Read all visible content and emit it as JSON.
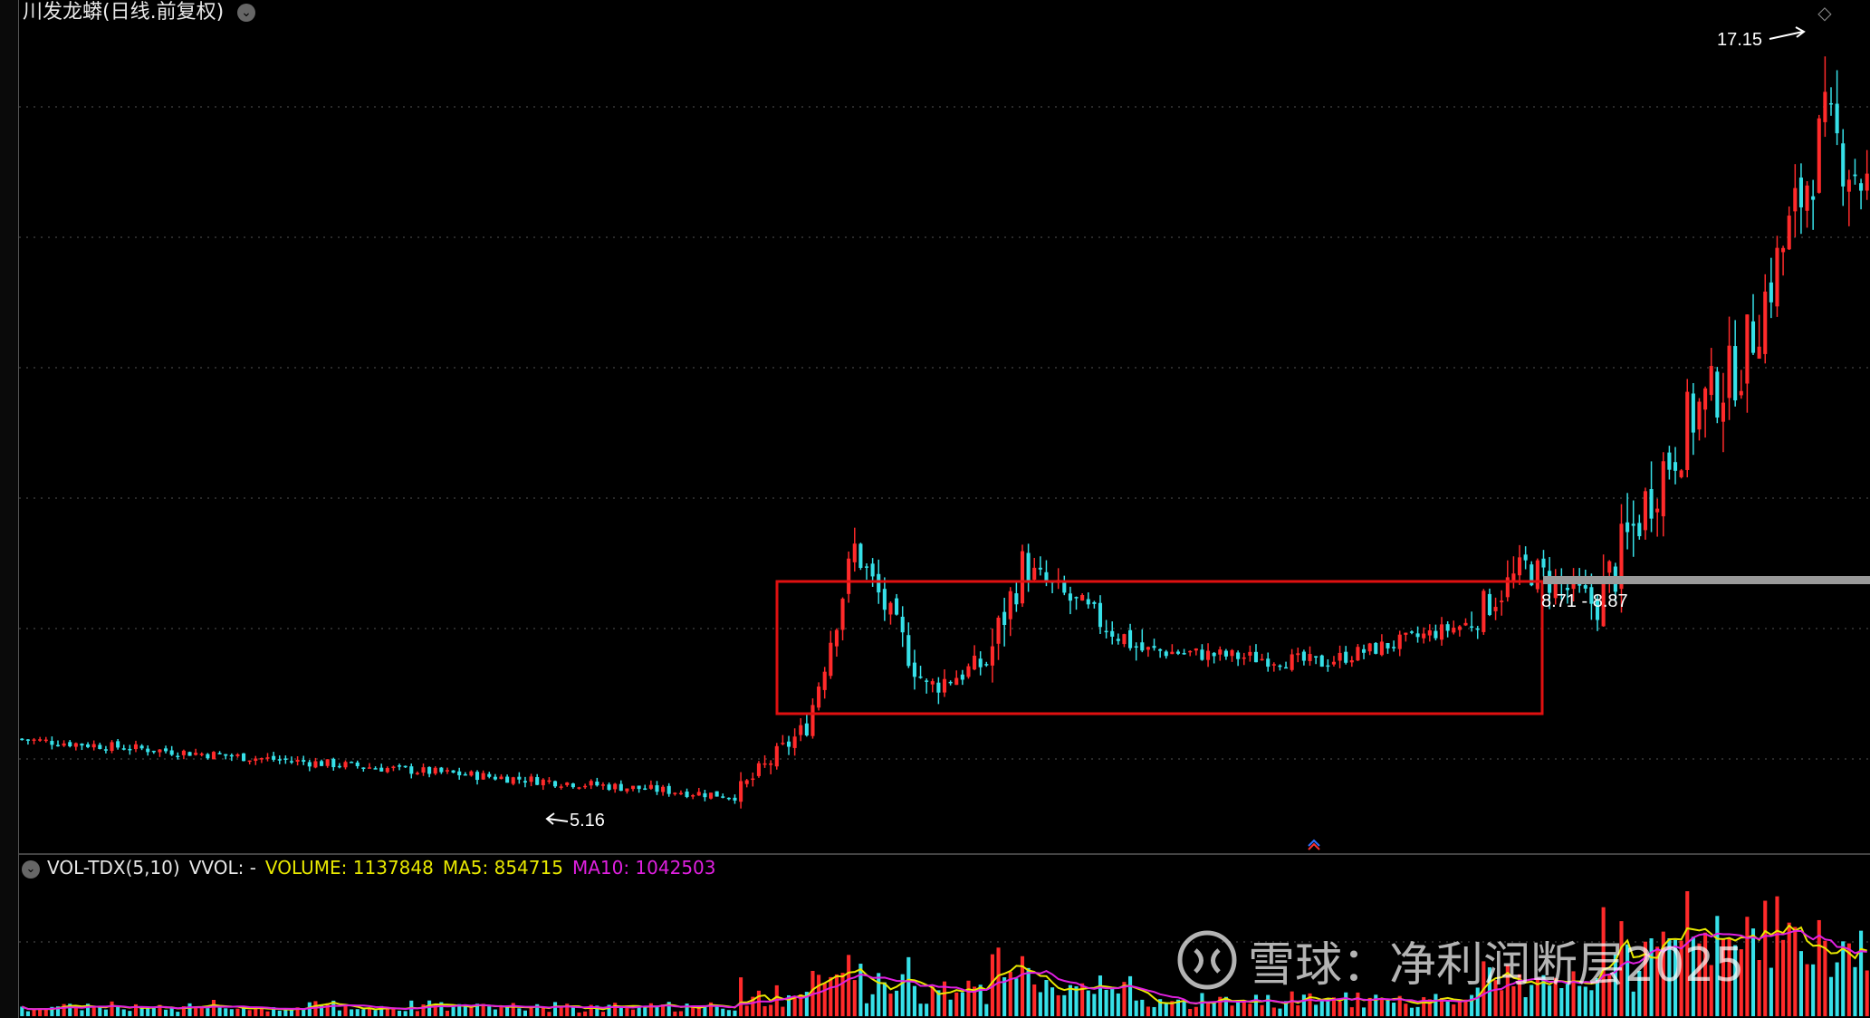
{
  "title": {
    "stock_name": "川发龙蟒",
    "period_label": "(日线.前复权)"
  },
  "icons": {
    "title_toggle": "chevron-down-icon",
    "vol_toggle": "chevron-down-icon",
    "corner": "diamond-icon",
    "marker": "double-chevron-up-icon",
    "watermark_logo": "snowball-logo"
  },
  "colors": {
    "up": "#ff2a2a",
    "down": "#36e0e8",
    "box": "#e01010",
    "ma5": "#e8e800",
    "ma10": "#e020e0",
    "grid": "#555555",
    "band": "#9a9a9a"
  },
  "annotations": {
    "high_label": "17.15",
    "low_label": "5.16",
    "range_label": "8.71 - 8.87"
  },
  "volume_panel": {
    "indicator": "VOL-TDX(5,10)",
    "vvol": "VVOL: -",
    "volume": "VOLUME: 1137848",
    "ma5": "MA5: 854715",
    "ma10": "MA10: 1042503"
  },
  "watermark": {
    "text": "雪球：净利润断层2025"
  },
  "chart_data": {
    "type": "candlestick",
    "title": "",
    "price_high": 17.15,
    "price_low": 5.16,
    "consolidation_range": [
      8.71,
      8.87
    ],
    "segments": [
      {
        "days": 120,
        "from": 6.2,
        "to": 5.3,
        "vol": 0.15
      },
      {
        "days": 12,
        "from": 5.3,
        "to": 6.4,
        "vol": 0.32
      },
      {
        "days": 8,
        "from": 6.4,
        "to": 9.2,
        "vol": 0.55
      },
      {
        "days": 12,
        "from": 9.2,
        "to": 7.0,
        "vol": 0.5
      },
      {
        "days": 10,
        "from": 7.0,
        "to": 7.4,
        "vol": 0.4
      },
      {
        "days": 6,
        "from": 7.4,
        "to": 8.9,
        "vol": 0.7
      },
      {
        "days": 20,
        "from": 8.9,
        "to": 7.6,
        "vol": 0.45
      },
      {
        "days": 30,
        "from": 7.6,
        "to": 7.4,
        "vol": 0.25
      },
      {
        "days": 24,
        "from": 7.4,
        "to": 8.0,
        "vol": 0.25
      },
      {
        "days": 10,
        "from": 8.0,
        "to": 8.9,
        "vol": 0.55
      },
      {
        "days": 12,
        "from": 8.9,
        "to": 8.3,
        "vol": 0.55
      },
      {
        "days": 10,
        "from": 8.3,
        "to": 10.3,
        "vol": 1.0
      },
      {
        "days": 6,
        "from": 10.3,
        "to": 11.3,
        "vol": 1.1
      },
      {
        "days": 8,
        "from": 11.3,
        "to": 12.1,
        "vol": 1.0
      },
      {
        "days": 8,
        "from": 12.1,
        "to": 14.2,
        "vol": 1.1
      },
      {
        "days": 6,
        "from": 14.2,
        "to": 15.8,
        "vol": 1.2
      },
      {
        "days": 7,
        "from": 15.8,
        "to": 14.9,
        "vol": 1.2
      }
    ]
  }
}
